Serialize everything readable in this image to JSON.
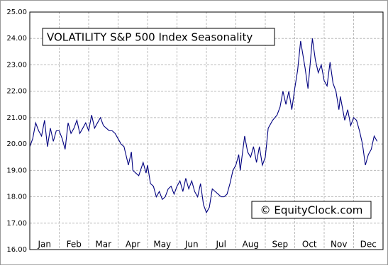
{
  "chart_data": {
    "type": "line",
    "title": "VOLATILITY S&P 500 Index Seasonality",
    "watermark": "© EquityClock.com",
    "xlim": [
      0,
      12
    ],
    "xticks": [
      {
        "value": 0.5,
        "label": "Jan"
      },
      {
        "value": 1.5,
        "label": "Feb"
      },
      {
        "value": 2.5,
        "label": "Mar"
      },
      {
        "value": 3.5,
        "label": "Apr"
      },
      {
        "value": 4.5,
        "label": "May"
      },
      {
        "value": 5.5,
        "label": "Jun"
      },
      {
        "value": 6.5,
        "label": "Jul"
      },
      {
        "value": 7.5,
        "label": "Aug"
      },
      {
        "value": 8.5,
        "label": "Sep"
      },
      {
        "value": 9.5,
        "label": "Oct"
      },
      {
        "value": 10.5,
        "label": "Nov"
      },
      {
        "value": 11.5,
        "label": "Dec"
      }
    ],
    "ylim": [
      16,
      25
    ],
    "yticks": [
      {
        "value": 16,
        "label": "16.00"
      },
      {
        "value": 17,
        "label": "17.00"
      },
      {
        "value": 18,
        "label": "18.00"
      },
      {
        "value": 19,
        "label": "19.00"
      },
      {
        "value": 20,
        "label": "20.00"
      },
      {
        "value": 21,
        "label": "21.00"
      },
      {
        "value": 22,
        "label": "22.00"
      },
      {
        "value": 23,
        "label": "23.00"
      },
      {
        "value": 24,
        "label": "24.00"
      },
      {
        "value": 25,
        "label": "25.00"
      }
    ],
    "grid": true,
    "series": [
      {
        "color": "#00007f",
        "x": [
          0,
          0.1,
          0.2,
          0.3,
          0.4,
          0.5,
          0.6,
          0.7,
          0.8,
          0.9,
          1.0,
          1.1,
          1.2,
          1.3,
          1.4,
          1.5,
          1.6,
          1.7,
          1.8,
          1.9,
          2.0,
          2.1,
          2.2,
          2.3,
          2.4,
          2.5,
          2.6,
          2.7,
          2.8,
          2.9,
          3.0,
          3.1,
          3.2,
          3.35,
          3.45,
          3.5,
          3.6,
          3.7,
          3.85,
          3.95,
          4.0,
          4.1,
          4.2,
          4.3,
          4.4,
          4.5,
          4.6,
          4.7,
          4.8,
          4.9,
          5.0,
          5.1,
          5.2,
          5.3,
          5.4,
          5.5,
          5.6,
          5.7,
          5.8,
          5.9,
          6.0,
          6.1,
          6.2,
          6.3,
          6.4,
          6.5,
          6.6,
          6.7,
          6.8,
          6.9,
          7.0,
          7.1,
          7.15,
          7.3,
          7.4,
          7.5,
          7.6,
          7.7,
          7.8,
          7.9,
          8.0,
          8.1,
          8.25,
          8.4,
          8.5,
          8.6,
          8.7,
          8.8,
          8.9,
          9.0,
          9.1,
          9.2,
          9.35,
          9.45,
          9.6,
          9.7,
          9.8,
          9.9,
          10.0,
          10.1,
          10.2,
          10.3,
          10.4,
          10.5,
          10.55,
          10.7,
          10.8,
          10.9,
          11.0,
          11.1,
          11.2,
          11.3,
          11.4,
          11.5,
          11.6,
          11.7,
          11.8
        ],
        "values": [
          19.9,
          20.2,
          20.8,
          20.5,
          20.3,
          20.9,
          19.9,
          20.6,
          20.1,
          20.5,
          20.5,
          20.2,
          19.8,
          20.8,
          20.4,
          20.6,
          20.9,
          20.4,
          20.6,
          20.8,
          20.5,
          21.1,
          20.6,
          20.8,
          21.0,
          20.7,
          20.6,
          20.5,
          20.5,
          20.4,
          20.2,
          20.0,
          19.9,
          19.2,
          19.7,
          19.0,
          18.9,
          18.8,
          19.3,
          18.9,
          19.2,
          18.5,
          18.4,
          18.0,
          18.2,
          17.9,
          18.0,
          18.3,
          18.4,
          18.1,
          18.4,
          18.6,
          18.2,
          18.7,
          18.3,
          18.6,
          18.2,
          18.0,
          18.5,
          17.7,
          17.4,
          17.6,
          18.3,
          18.2,
          18.1,
          18.0,
          18.0,
          18.1,
          18.5,
          19.0,
          19.2,
          19.6,
          19.0,
          20.3,
          19.7,
          19.5,
          19.9,
          19.3,
          19.9,
          19.2,
          19.5,
          20.6,
          20.9,
          21.1,
          21.4,
          22.0,
          21.5,
          22.0,
          21.3,
          22.1,
          22.8,
          23.9,
          22.9,
          22.1,
          24.0,
          23.2,
          22.7,
          23.0,
          22.4,
          22.2,
          23.1,
          22.3,
          22.0,
          21.3,
          21.8,
          20.9,
          21.3,
          20.7,
          21.0,
          20.9,
          20.5,
          20.0,
          19.2,
          19.6,
          19.8,
          20.3,
          20.1
        ]
      }
    ]
  }
}
